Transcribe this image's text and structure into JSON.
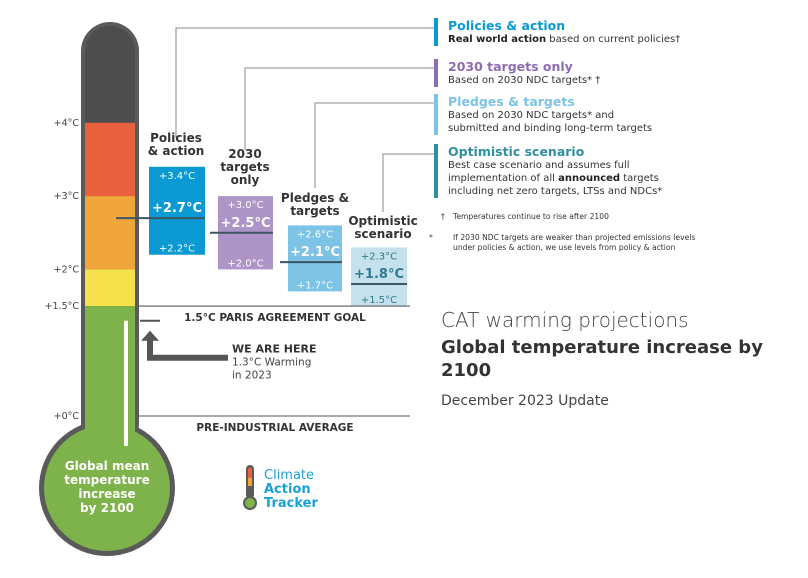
{
  "chart_data": {
    "type": "bar",
    "y_axis": {
      "min": 0,
      "max": 4.6,
      "ticks": [
        {
          "value": 4.0,
          "label": "+4°C"
        },
        {
          "value": 3.0,
          "label": "+3°C"
        },
        {
          "value": 2.0,
          "label": "+2°C"
        },
        {
          "value": 1.5,
          "label": "+1.5°C"
        },
        {
          "value": 0.0,
          "label": "+0°C"
        }
      ]
    },
    "thermometer": {
      "label": "Global mean temperature increase by 2100",
      "bands": [
        {
          "from": 4.0,
          "to": 4.6,
          "color": "#4d4d4d"
        },
        {
          "from": 3.0,
          "to": 4.0,
          "color": "#e8603c"
        },
        {
          "from": 2.0,
          "to": 3.0,
          "color": "#f0a63a"
        },
        {
          "from": 1.5,
          "to": 2.0,
          "color": "#f6e04b"
        },
        {
          "from": 0.0,
          "to": 1.5,
          "color": "#7eb24a"
        }
      ],
      "current_level": 1.3
    },
    "series": [
      {
        "name": "Policies & action",
        "label_lines": [
          "Policies",
          "& action"
        ],
        "low": 2.2,
        "high": 3.4,
        "central": 2.7,
        "low_label": "+2.2°C",
        "high_label": "+3.4°C",
        "central_label": "+2.7°C",
        "color": "#0a9ad3",
        "text_color": "#ffffff"
      },
      {
        "name": "2030 targets only",
        "label_lines": [
          "2030",
          "targets",
          "only"
        ],
        "low": 2.0,
        "high": 3.0,
        "central": 2.5,
        "low_label": "+2.0°C",
        "high_label": "+3.0°C",
        "central_label": "+2.5°C",
        "color": "#ae95c8",
        "text_color": "#ffffff"
      },
      {
        "name": "Pledges & targets",
        "label_lines": [
          "Pledges &",
          "targets"
        ],
        "low": 1.7,
        "high": 2.6,
        "central": 2.1,
        "low_label": "+1.7°C",
        "high_label": "+2.6°C",
        "central_label": "+2.1°C",
        "color": "#7cc3e6",
        "text_color": "#ffffff"
      },
      {
        "name": "Optimistic scenario",
        "label_lines": [
          "Optimistic",
          "scenario"
        ],
        "low": 1.5,
        "high": 2.3,
        "central": 1.8,
        "low_label": "+1.5°C",
        "high_label": "+2.3°C",
        "central_label": "+1.8°C",
        "color": "#c6e1ee",
        "text_color": "#2f7a8c"
      }
    ],
    "reference_lines": [
      {
        "value": 1.5,
        "label": "1.5°C PARIS AGREEMENT GOAL"
      },
      {
        "value": 0.0,
        "label": "PRE-INDUSTRIAL AVERAGE"
      }
    ],
    "annotation": {
      "title": "WE ARE HERE",
      "lines": [
        "1.3°C Warming",
        "in 2023"
      ],
      "value": 1.3
    }
  },
  "legend": [
    {
      "title": "Policies & action",
      "color": "#0a9ad3",
      "html": "<b>Real world action</b> based on current policies†"
    },
    {
      "title": "2030 targets only",
      "color": "#8e6bb5",
      "html": "Based on 2030 NDC targets* †"
    },
    {
      "title": "Pledges & targets",
      "color": "#7cc3e6",
      "html": "Based on 2030 NDC targets* and<br>submitted and binding long-term targets"
    },
    {
      "title": "Optimistic scenario",
      "color": "#2f8fa0",
      "html": "Best case scenario and assumes full<br>implementation of all <b>announced</b> targets<br>including net zero targets, LTSs and NDCs*"
    }
  ],
  "notes": [
    {
      "mark": "†",
      "text": "Temperatures continue to rise after 2100"
    },
    {
      "mark": "*",
      "text": "If 2030 NDC targets are weaker than projected emissions levels under policies & action, we use levels from policy & action"
    }
  ],
  "heading": {
    "line1": "CAT warming projections",
    "line2": "Global temperature increase by 2100",
    "line3": "December 2023 Update"
  },
  "logo": {
    "line1": "Climate",
    "line2": "Action",
    "line3": "Tracker"
  },
  "colors": {
    "accent_text": "#444444",
    "logo_blue": "#1aa0d8",
    "thermo_outline": "#5a5a5a"
  }
}
